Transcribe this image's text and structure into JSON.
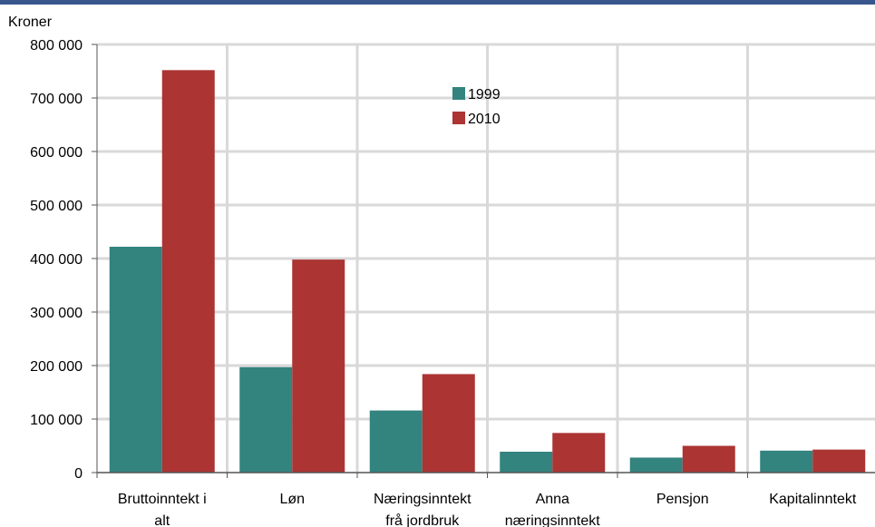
{
  "chart_data": {
    "type": "bar",
    "title": "",
    "ylabel": "Kroner",
    "xlabel": "",
    "ylim": [
      0,
      800000
    ],
    "yticks": [
      0,
      100000,
      200000,
      300000,
      400000,
      500000,
      600000,
      700000,
      800000
    ],
    "ytick_labels": [
      "0",
      "100 000",
      "200 000",
      "300 000",
      "400 000",
      "500 000",
      "600 000",
      "700 000",
      "800 000"
    ],
    "categories": [
      [
        "Bruttoinntekt i",
        "alt"
      ],
      [
        "Løn"
      ],
      [
        "Næringsinntekt",
        "frå jordbruk"
      ],
      [
        "Anna",
        "næringsinntekt"
      ],
      [
        "Pensjon"
      ],
      [
        "Kapitalinntekt"
      ]
    ],
    "series": [
      {
        "name": "1999",
        "color": "#33837e",
        "values": [
          422000,
          197000,
          116000,
          39000,
          28000,
          41000
        ]
      },
      {
        "name": "2010",
        "color": "#ac3433",
        "values": [
          752000,
          398000,
          184000,
          74000,
          50000,
          43000
        ]
      }
    ],
    "grid": true,
    "legend": "top-center"
  }
}
